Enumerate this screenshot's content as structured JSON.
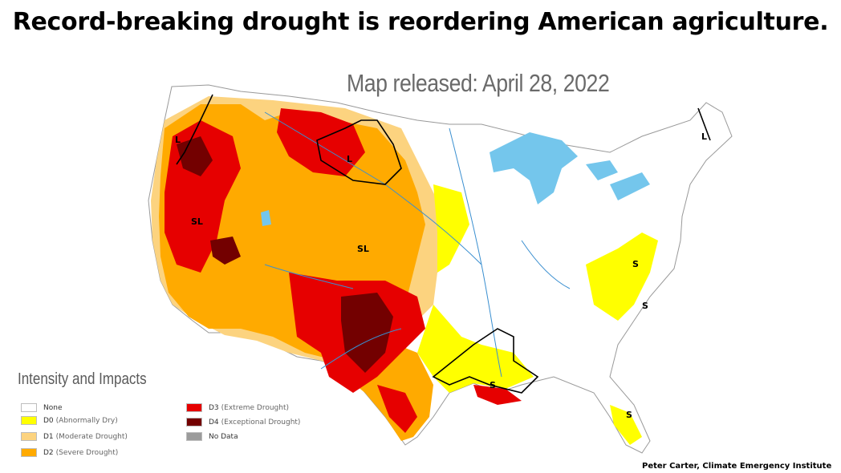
{
  "headline": "Record-breaking drought is reordering American agriculture.",
  "subtitle": "Map released: April 28, 2022",
  "legend": {
    "title": "Intensity and Impacts",
    "items": [
      {
        "code": "None",
        "desc": "",
        "color": "#ffffff"
      },
      {
        "code": "D0",
        "desc": "(Abnormally Dry)",
        "color": "#ffff00"
      },
      {
        "code": "D1",
        "desc": "(Moderate Drought)",
        "color": "#fcd37f"
      },
      {
        "code": "D2",
        "desc": "(Severe Drought)",
        "color": "#ffaa00"
      },
      {
        "code": "D3",
        "desc": "(Extreme Drought)",
        "color": "#e60000"
      },
      {
        "code": "D4",
        "desc": "(Exceptional Drought)",
        "color": "#730000"
      },
      {
        "code": "No Data",
        "desc": "",
        "color": "#9b9b9b"
      }
    ]
  },
  "map_labels": [
    "L",
    "L",
    "SL",
    "SL",
    "S",
    "S",
    "S",
    "S",
    "L"
  ],
  "credit": "Peter Carter, Climate Emergency Institute",
  "colors": {
    "water": "#74c6ec",
    "river": "#3a8fd0",
    "state_border": "#b9b9b9",
    "impact_line": "#000000"
  }
}
